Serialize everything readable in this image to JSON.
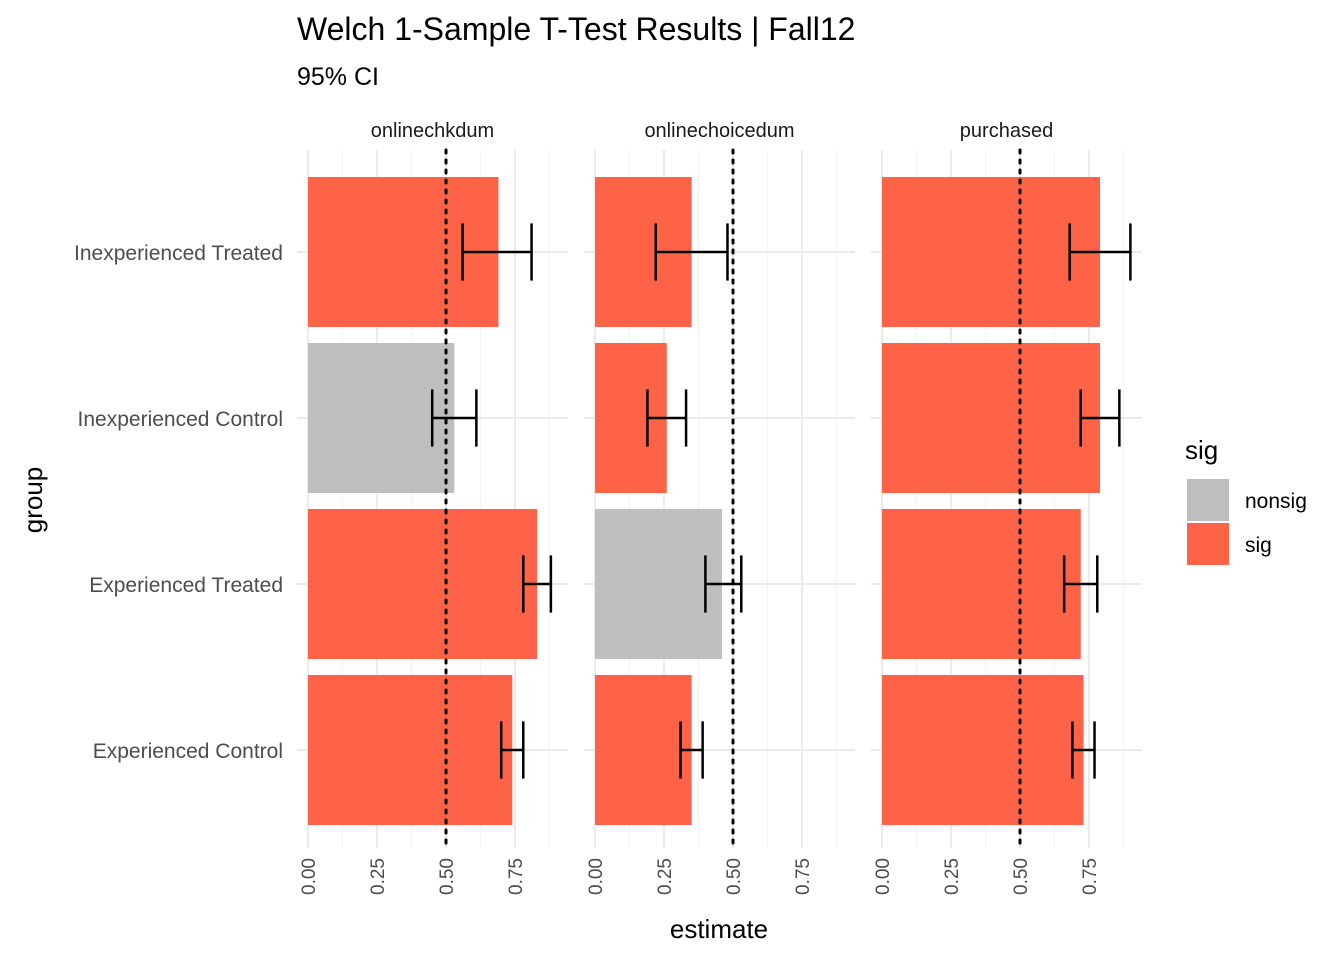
{
  "chart_data": {
    "type": "bar",
    "orientation": "horizontal",
    "title": "Welch 1-Sample T-Test Results | Fall12",
    "subtitle": "95% CI",
    "xlabel": "estimate",
    "ylabel": "group",
    "xlim": [
      0,
      0.9
    ],
    "x_ticks": [
      "0.00",
      "0.25",
      "0.50",
      "0.75"
    ],
    "reference_line": 0.5,
    "grid": true,
    "legend": {
      "title": "sig",
      "placement": "right",
      "entries": [
        {
          "name": "nonsig",
          "color": "#bebebe"
        },
        {
          "name": "sig",
          "color": "#ff6347"
        }
      ]
    },
    "categories": [
      "Inexperienced Treated",
      "Inexperienced Control",
      "Experienced Treated",
      "Experienced Control"
    ],
    "facets": [
      {
        "label": "onlinechkdum",
        "bars": [
          {
            "group": "Inexperienced Treated",
            "estimate": 0.69,
            "ci_low": 0.56,
            "ci_high": 0.81,
            "sig": "sig"
          },
          {
            "group": "Inexperienced Control",
            "estimate": 0.53,
            "ci_low": 0.45,
            "ci_high": 0.61,
            "sig": "nonsig"
          },
          {
            "group": "Experienced Treated",
            "estimate": 0.83,
            "ci_low": 0.78,
            "ci_high": 0.88,
            "sig": "sig"
          },
          {
            "group": "Experienced Control",
            "estimate": 0.74,
            "ci_low": 0.7,
            "ci_high": 0.78,
            "sig": "sig"
          }
        ]
      },
      {
        "label": "onlinechoicedum",
        "bars": [
          {
            "group": "Inexperienced Treated",
            "estimate": 0.35,
            "ci_low": 0.22,
            "ci_high": 0.48,
            "sig": "sig"
          },
          {
            "group": "Inexperienced Control",
            "estimate": 0.26,
            "ci_low": 0.19,
            "ci_high": 0.33,
            "sig": "sig"
          },
          {
            "group": "Experienced Treated",
            "estimate": 0.46,
            "ci_low": 0.4,
            "ci_high": 0.53,
            "sig": "nonsig"
          },
          {
            "group": "Experienced Control",
            "estimate": 0.35,
            "ci_low": 0.31,
            "ci_high": 0.39,
            "sig": "sig"
          }
        ]
      },
      {
        "label": "purchased",
        "bars": [
          {
            "group": "Inexperienced Treated",
            "estimate": 0.79,
            "ci_low": 0.68,
            "ci_high": 0.9,
            "sig": "sig"
          },
          {
            "group": "Inexperienced Control",
            "estimate": 0.79,
            "ci_low": 0.72,
            "ci_high": 0.86,
            "sig": "sig"
          },
          {
            "group": "Experienced Treated",
            "estimate": 0.72,
            "ci_low": 0.66,
            "ci_high": 0.78,
            "sig": "sig"
          },
          {
            "group": "Experienced Control",
            "estimate": 0.73,
            "ci_low": 0.69,
            "ci_high": 0.77,
            "sig": "sig"
          }
        ]
      }
    ]
  }
}
